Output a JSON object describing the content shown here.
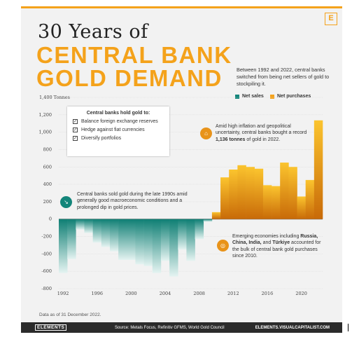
{
  "header": {
    "title_line1": "30 Years of",
    "title_line2": "CENTRAL BANK",
    "title_line3": "GOLD DEMAND",
    "subtitle": "Between 1992 and 2022, central banks switched from being net sellers of gold to stockpiling it.",
    "logo_letter": "E"
  },
  "legend": {
    "net_sales": "Net sales",
    "net_purchases": "Net purchases",
    "net_sales_color": "#13857a",
    "net_purchases_color": "#f4a21b"
  },
  "note_box": {
    "title": "Central banks hold gold to:",
    "items": [
      "Balance foreign exchange reserves",
      "Hedge against fiat currencies",
      "Diversify portfolios"
    ]
  },
  "annotations": {
    "sales_1990s": "Central banks sold gold during the late 1990s amid generally good macroeconomic conditions and a prolonged dip in gold prices.",
    "record_2022_a": "Amid high inflation and geopolitical uncertainty, central banks bought a record ",
    "record_2022_b": "1,136 tonnes",
    "record_2022_c": " of gold in 2022.",
    "emerging_a": "Emerging economies including ",
    "emerging_b": "Russia, China, India,",
    "emerging_c": " and ",
    "emerging_d": "Türkiye",
    "emerging_e": " accounted for the bulk of central bank gold purchases since 2010."
  },
  "footnote": "Data as of 31 December 2022.",
  "footer": {
    "brand": "ELEMENTS",
    "source": "Source: Metals Focus, Refinitiv GFMS, World Gold Council",
    "site": "ELEMENTS.VISUALCAPITALIST.COM"
  },
  "chart_data": {
    "type": "area",
    "title": "30 Years of CENTRAL BANK GOLD DEMAND",
    "ylabel": "Tonnes",
    "ylim": [
      -800,
      1400
    ],
    "yticks": [
      -800,
      -600,
      -400,
      -200,
      0,
      200,
      400,
      600,
      800,
      1000,
      1200,
      1400
    ],
    "ytick_labels": [
      "-800",
      "-600",
      "-400",
      "-200",
      "0",
      "200",
      "400",
      "600",
      "800",
      "1,000",
      "1,200",
      "1,400 Tonnes"
    ],
    "xticks": [
      1992,
      1996,
      2000,
      2004,
      2008,
      2012,
      2016,
      2020
    ],
    "xlim": [
      1991.5,
      2022.5
    ],
    "x": [
      1992,
      1993,
      1994,
      1995,
      1996,
      1997,
      1998,
      1999,
      2000,
      2001,
      2002,
      2003,
      2004,
      2005,
      2006,
      2007,
      2008,
      2009,
      2010,
      2011,
      2012,
      2013,
      2014,
      2015,
      2016,
      2017,
      2018,
      2019,
      2020,
      2021,
      2022
    ],
    "values": [
      -620,
      -460,
      -120,
      -160,
      -270,
      -320,
      -370,
      -470,
      -470,
      -520,
      -540,
      -620,
      -480,
      -660,
      -350,
      -480,
      -230,
      -30,
      80,
      480,
      570,
      620,
      600,
      580,
      390,
      380,
      650,
      600,
      260,
      450,
      1136
    ],
    "grid": true,
    "series": [
      {
        "name": "Net sales",
        "color": "#13857a"
      },
      {
        "name": "Net purchases",
        "color": "#f4a21b"
      }
    ]
  }
}
